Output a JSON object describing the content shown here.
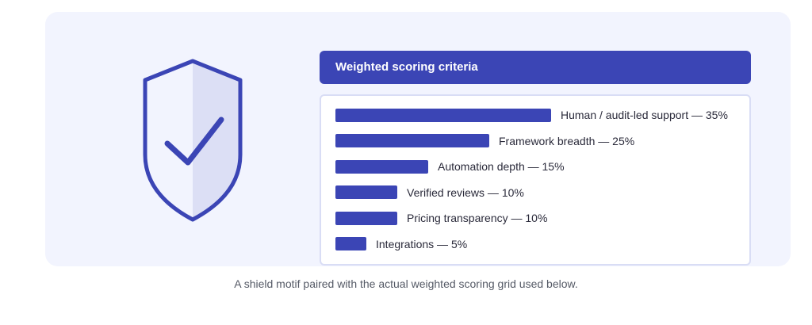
{
  "colors": {
    "accent": "#3b45b5",
    "card_background": "#f2f4fe",
    "shield_fill": "#dcdff5"
  },
  "icons": {
    "shield": "shield-check-icon"
  },
  "chart_data": {
    "type": "bar",
    "orientation": "horizontal",
    "title": "Weighted scoring criteria",
    "categories": [
      "Human / audit-led support",
      "Framework breadth",
      "Automation depth",
      "Verified reviews",
      "Pricing transparency",
      "Integrations"
    ],
    "values": [
      35,
      25,
      15,
      10,
      10,
      5
    ],
    "labels": [
      "Human / audit-led support — 35%",
      "Framework breadth — 25%",
      "Automation depth — 15%",
      "Verified reviews — 10%",
      "Pricing transparency — 10%",
      "Integrations — 5%"
    ],
    "unit": "%",
    "xlim": [
      0,
      35
    ],
    "grid": false
  },
  "caption": "A shield motif paired with the actual weighted scoring grid used below."
}
